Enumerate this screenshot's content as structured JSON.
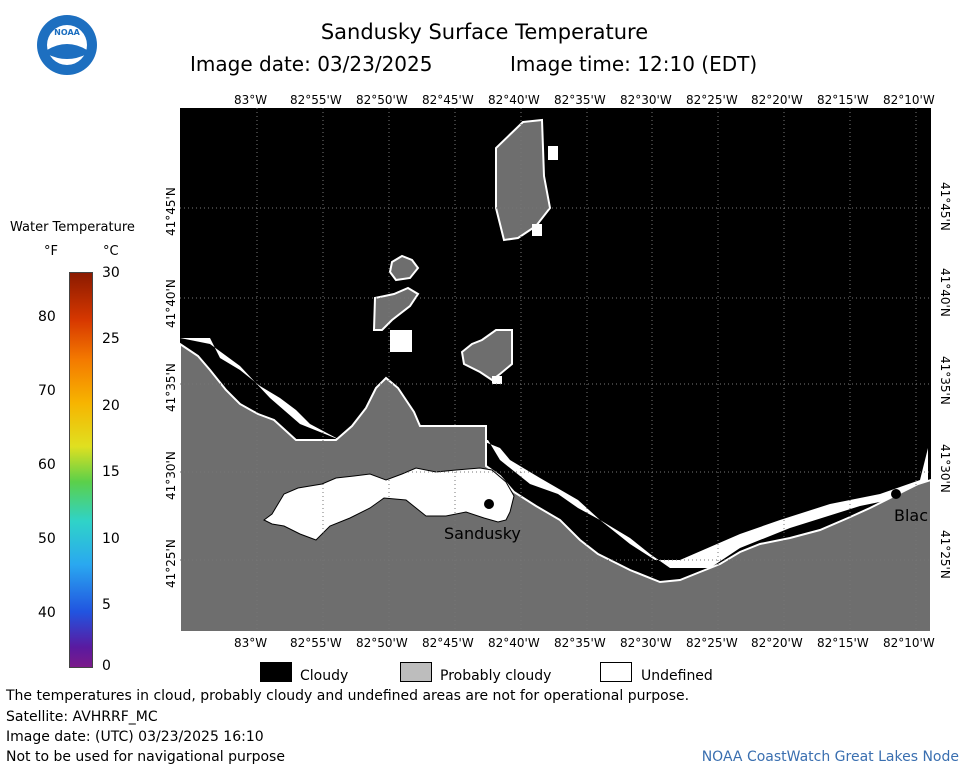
{
  "title": "Sandusky Surface Temperature",
  "image_date_label": "Image date: 03/23/2025",
  "image_time_label": "Image time: 12:10 (EDT)",
  "logo_text": "NOAA",
  "colorbar": {
    "title": "Water Temperature",
    "f_unit": "°F",
    "c_unit": "°C",
    "f_ticks": [
      "80",
      "70",
      "60",
      "50",
      "40"
    ],
    "c_ticks": [
      "30",
      "25",
      "20",
      "15",
      "10",
      "5",
      "0"
    ]
  },
  "lon_ticks": [
    "83°W",
    "82°55'W",
    "82°50'W",
    "82°45'W",
    "82°40'W",
    "82°35'W",
    "82°30'W",
    "82°25'W",
    "82°20'W",
    "82°15'W",
    "82°10'W"
  ],
  "lat_ticks": [
    "41°45'N",
    "41°40'N",
    "41°35'N",
    "41°30'N",
    "41°25'N"
  ],
  "places": {
    "sandusky": "Sandusky",
    "east_partial": "Blac"
  },
  "legend": {
    "cloudy": "Cloudy",
    "probably_cloudy": "Probably cloudy",
    "undefined": "Undefined"
  },
  "footer": {
    "disclaimer": "The temperatures in cloud, probably cloudy and undefined areas are not for operational purpose.",
    "satellite": "Satellite: AVHRRF_MC",
    "utc_date": "Image date: (UTC) 03/23/2025  16:10",
    "nav_warning": "Not to be used for navigational purpose",
    "credit": "NOAA CoastWatch Great Lakes Node"
  },
  "colors": {
    "cloudy": "#000000",
    "probably_cloudy": "#6e6e6e",
    "undefined": "#ffffff",
    "credit": "#3a6fb0"
  }
}
